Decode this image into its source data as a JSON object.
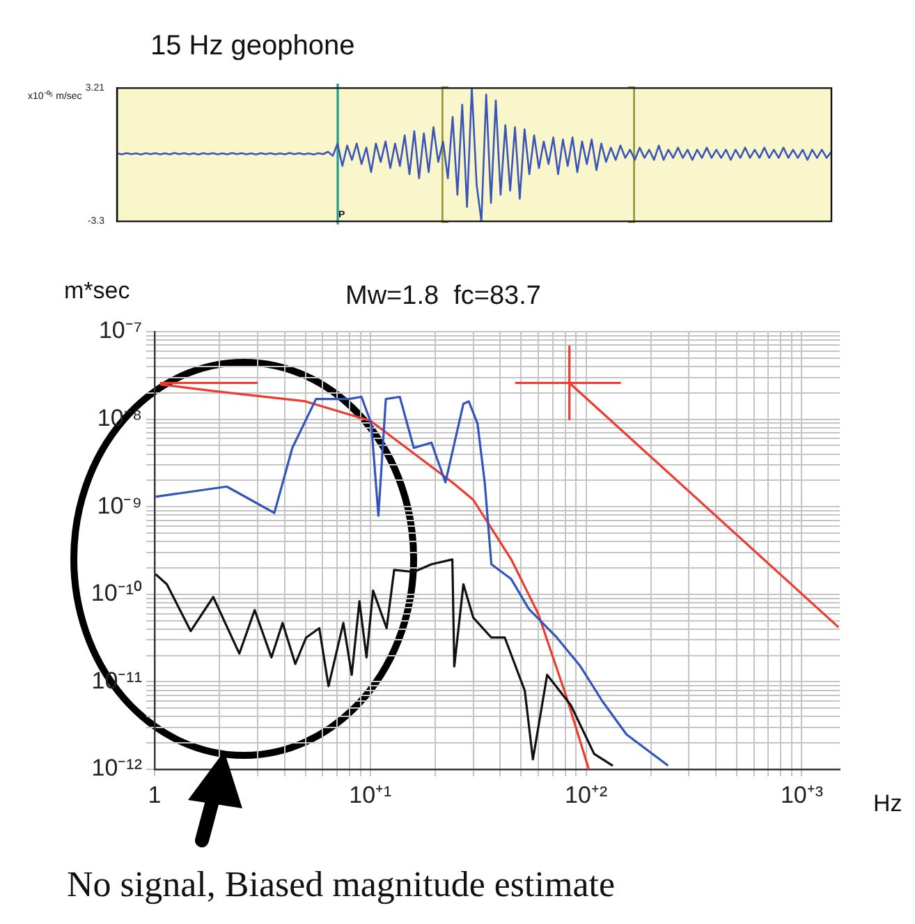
{
  "chart_data": [
    {
      "type": "line",
      "title": "15 Hz geophone",
      "ylabel": "x10⁻⁰⁵ m/sec",
      "ylim": [
        -3.3,
        3.21
      ],
      "yticks": [
        3.21,
        -3.3
      ],
      "tick_labels": "y",
      "marker": "none",
      "line_style": "solid",
      "categories": [
        null,
        null,
        null,
        null,
        null,
        null,
        null,
        null,
        null,
        null,
        null,
        null,
        null,
        null,
        null,
        null,
        null,
        null,
        null,
        null,
        null,
        null,
        null,
        null,
        null,
        null,
        null,
        null,
        null,
        null,
        null,
        null,
        null,
        null,
        null,
        null,
        null,
        null,
        null,
        null,
        null,
        null,
        null,
        null,
        null,
        null,
        null,
        null,
        null,
        null,
        null,
        null,
        null,
        null,
        null,
        null,
        null,
        null,
        null,
        null,
        null,
        null,
        null,
        null,
        null,
        null,
        null,
        null,
        null,
        null,
        null,
        null,
        null,
        null,
        null,
        null,
        null,
        null,
        null,
        null,
        null,
        null,
        null,
        null,
        null,
        null,
        null,
        null,
        null,
        null,
        null,
        null,
        null,
        null,
        null,
        null,
        null,
        null,
        null,
        null,
        null,
        null,
        null,
        null,
        null,
        null,
        null,
        null,
        null,
        null,
        null,
        null,
        null,
        null,
        null,
        null,
        null,
        null,
        null,
        null,
        null,
        null,
        null,
        null,
        null,
        null,
        null,
        null,
        null,
        null,
        null,
        null,
        null,
        null,
        null,
        null,
        null,
        null,
        null,
        null,
        null,
        null,
        null,
        null,
        null,
        null,
        null,
        null,
        null,
        null
      ],
      "annotations": [
        "P"
      ],
      "series": [
        {
          "color": "#3a55b8",
          "values": [
            0.02,
            -0.03,
            0.03,
            -0.02,
            0.02,
            -0.04,
            0.03,
            -0.02,
            0.03,
            -0.03,
            0.02,
            -0.03,
            0.04,
            -0.02,
            0.03,
            -0.03,
            0.02,
            -0.04,
            0.03,
            -0.02,
            0.03,
            -0.03,
            0.02,
            -0.03,
            0.04,
            -0.02,
            0.03,
            -0.03,
            0.02,
            -0.04,
            0.03,
            -0.02,
            0.03,
            -0.03,
            0.02,
            -0.03,
            0.04,
            -0.02,
            0.03,
            -0.03,
            0.02,
            -0.04,
            0.03,
            -0.02,
            0.1,
            -0.1,
            0.5,
            -0.6,
            0.4,
            -0.3,
            0.5,
            -0.5,
            0.3,
            -0.9,
            0.5,
            -0.4,
            0.6,
            -0.7,
            0.5,
            -0.6,
            0.9,
            -1.0,
            1.1,
            -1.2,
            1.0,
            -0.9,
            1.3,
            -0.4,
            0.6,
            -1.2,
            1.8,
            -2.0,
            2.4,
            -2.6,
            3.21,
            -1.5,
            -3.3,
            2.9,
            -2.4,
            2.6,
            -2.0,
            1.4,
            -1.8,
            1.3,
            -2.2,
            1.2,
            -1.0,
            0.9,
            -0.7,
            0.6,
            -0.5,
            0.8,
            -1.0,
            0.7,
            -0.6,
            0.8,
            -0.9,
            0.6,
            -0.5,
            0.7,
            -0.8,
            0.5,
            -0.4,
            0.3,
            -0.3,
            0.4,
            -0.2,
            0.2,
            -0.3,
            0.3,
            -0.2,
            0.2,
            -0.3,
            0.4,
            -0.3,
            0.2,
            -0.2,
            0.3,
            -0.2,
            0.2,
            -0.3,
            0.2,
            -0.2,
            0.3,
            -0.2,
            0.2,
            -0.2,
            0.2,
            -0.3,
            0.2,
            -0.2,
            0.3,
            -0.2,
            0.2,
            -0.2,
            0.3,
            -0.2,
            0.2,
            -0.2,
            0.3,
            -0.2,
            0.2,
            -0.2,
            0.2,
            -0.3,
            0.2,
            -0.2,
            0.2,
            -0.2,
            0.1
          ]
        }
      ]
    },
    {
      "type": "line",
      "title": "Mw=1.8  fc=83.7",
      "xlabel": "Hz",
      "ylabel": "m*sec",
      "log": "xy",
      "grid": true,
      "legend": false,
      "marker": "none",
      "line_style": "solid",
      "xlim": [
        1,
        1500
      ],
      "xticks": [
        1,
        {
          "value": 10,
          "label": "10⁺¹"
        },
        {
          "value": 100,
          "label": "10⁺²"
        },
        {
          "value": 1000,
          "label": "10⁺³"
        }
      ],
      "ylim": [
        1e-12,
        1e-07
      ],
      "yticks": [
        {
          "value": 1e-07,
          "label": "10⁻⁷"
        },
        {
          "value": 1e-08,
          "label": "10⁻⁸"
        },
        {
          "value": 1e-09,
          "label": "10⁻⁹"
        },
        {
          "value": 1e-10,
          "label": "10⁻¹⁰"
        },
        {
          "value": 1e-11,
          "label": "10⁻¹¹"
        },
        {
          "value": 1e-12,
          "label": "10⁻¹²"
        }
      ],
      "annotations": [
        "No signal, Biased magnitude estimate"
      ],
      "series": [
        {
          "color": "#3355bb",
          "x": [
            1.01,
            2.16,
            2.79,
            3.59,
            4.35,
            5.6,
            7.9,
            9.1,
            10.1,
            10.9,
            11.8,
            13.7,
            15.9,
            19.2,
            22.3,
            27,
            28.6,
            31.4,
            33.9,
            36.4,
            44.9,
            54.3,
            73.2,
            94.2,
            119,
            154,
            240
          ],
          "values": [
            1.3e-09,
            1.7e-09,
            1.2e-09,
            8.5e-10,
            4.7e-09,
            1.7e-08,
            1.7e-08,
            1.8e-08,
            8.9e-09,
            7.9e-10,
            1.7e-08,
            1.8e-08,
            4.7e-09,
            5.4e-09,
            1.9e-09,
            1.5e-08,
            1.6e-08,
            8.9e-09,
            1.9e-09,
            2.2e-10,
            1.5e-10,
            6.8e-11,
            3.2e-11,
            1.5e-11,
            6e-12,
            2.5e-12,
            1.1e-12
          ]
        },
        {
          "color": "#111111",
          "x": [
            1.01,
            1.14,
            1.47,
            1.87,
            2.47,
            2.91,
            3.48,
            3.92,
            4.49,
            5.04,
            5.8,
            6.4,
            7.5,
            8.2,
            8.9,
            9.6,
            10.3,
            11.9,
            12.9,
            15.9,
            19.2,
            24,
            24.5,
            27,
            30,
            36.4,
            42,
            52,
            56.7,
            66,
            85,
            109,
            133
          ],
          "values": [
            1.7e-10,
            1.3e-10,
            3.8e-11,
            9.3e-11,
            2.1e-11,
            6.6e-11,
            1.9e-11,
            4.7e-11,
            1.6e-11,
            3.2e-11,
            4.1e-11,
            8.9e-12,
            4.7e-11,
            1.2e-11,
            8.3e-11,
            1.9e-11,
            1.1e-10,
            4.1e-11,
            1.9e-10,
            1.8e-10,
            2.2e-10,
            2.5e-10,
            1.5e-11,
            1.3e-10,
            5.4e-11,
            3.2e-11,
            3.2e-11,
            7.9e-12,
            1.3e-12,
            1.2e-11,
            5.4e-12,
            1.5e-12,
            1.1e-12
          ]
        },
        {
          "color": "#ee3b2f",
          "x": [
            1.06,
            1.87,
            5,
            10,
            24,
            30,
            45,
            60,
            81,
            103
          ],
          "values": [
            2.5e-08,
            2.1e-08,
            1.6e-08,
            9.6e-09,
            1.9e-09,
            1.2e-09,
            2.5e-10,
            6e-11,
            6.8e-12,
            1e-12
          ]
        },
        {
          "color": "#ee3b2f",
          "x": [
            1.06,
            3
          ],
          "values": [
            2.6e-08,
            2.6e-08
          ]
        },
        {
          "color": "#ee3b2f",
          "x": [
            83.7,
            1480
          ],
          "values": [
            2.6e-08,
            4.2e-11
          ]
        },
        {
          "color": "#ee3b2f",
          "x": [
            46.9,
            145
          ],
          "values": [
            2.6e-08,
            2.6e-08
          ]
        },
        {
          "color": "#ee3b2f",
          "x": [
            83.7,
            83.7
          ],
          "values": [
            6.8e-08,
            1e-08
          ]
        }
      ]
    }
  ]
}
